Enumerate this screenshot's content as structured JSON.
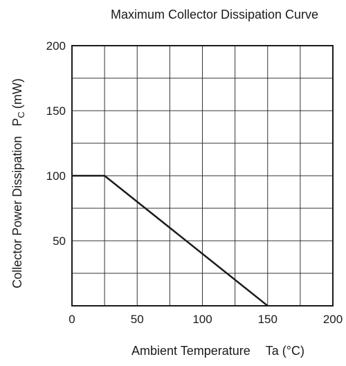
{
  "chart_data": {
    "type": "line",
    "title": "Maximum Collector Dissipation Curve",
    "xlabel": "Ambient Temperature",
    "xlabel_symbol": "Ta (°C)",
    "ylabel": "Collector Power Dissipation",
    "ylabel_symbol_main": "P",
    "ylabel_symbol_sub": "C",
    "ylabel_unit": "(mW)",
    "xlim": [
      0,
      200
    ],
    "ylim": [
      0,
      200
    ],
    "x_ticks": [
      0,
      50,
      100,
      150,
      200
    ],
    "y_ticks": [
      50,
      100,
      150,
      200
    ],
    "grid": true,
    "grid_x_step": 25,
    "grid_y_step": 25,
    "series": [
      {
        "x": [
          0,
          25,
          150
        ],
        "y": [
          100,
          100,
          0
        ]
      }
    ],
    "colors": {
      "line": "#1a1a1a",
      "grid": "#333333",
      "frame": "#1a1a1a"
    }
  }
}
